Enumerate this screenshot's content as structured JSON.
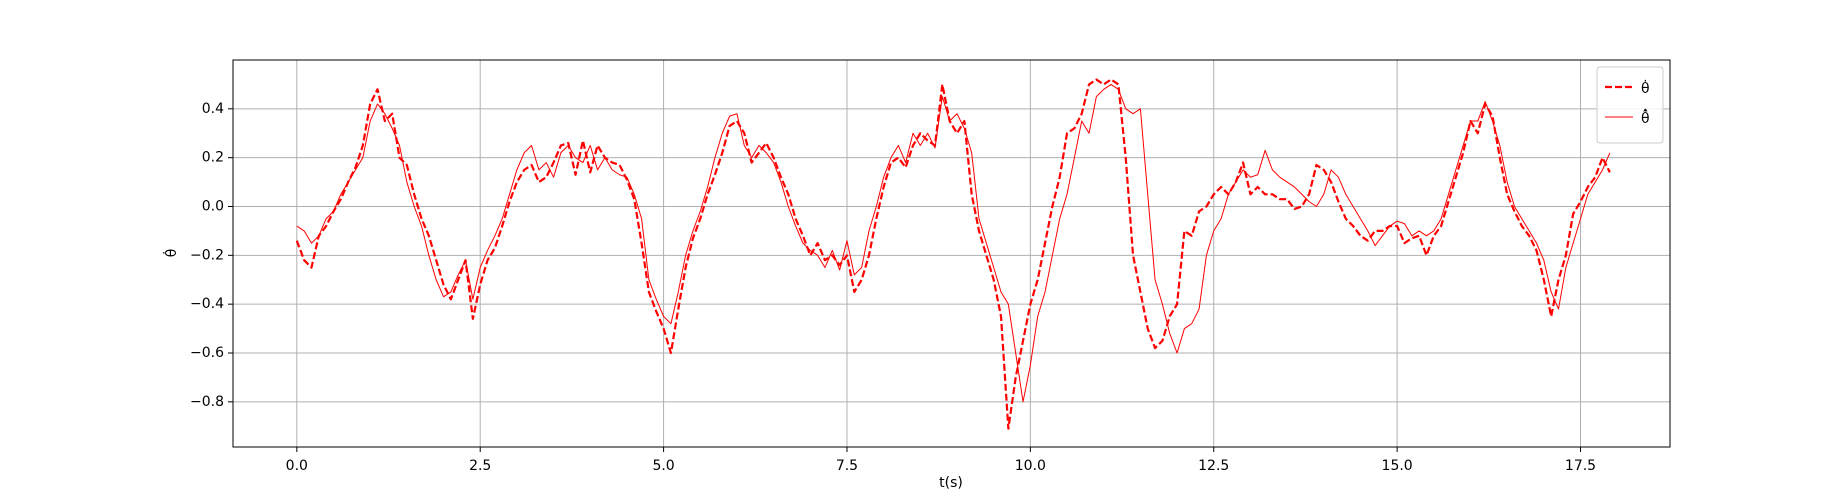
{
  "chart_data": {
    "type": "line",
    "xlabel": "t(s)",
    "ylabel": "θ̇",
    "x": [
      0,
      0.1,
      0.2,
      0.3,
      0.4,
      0.5,
      0.6,
      0.7,
      0.8,
      0.9,
      1,
      1.1,
      1.2,
      1.3,
      1.4,
      1.5,
      1.6,
      1.7,
      1.8,
      1.9,
      2,
      2.1,
      2.2,
      2.3,
      2.4,
      2.5,
      2.6,
      2.7,
      2.8,
      2.9,
      3,
      3.1,
      3.2,
      3.3,
      3.4,
      3.5,
      3.6,
      3.7,
      3.8,
      3.9,
      4,
      4.1,
      4.2,
      4.3,
      4.4,
      4.5,
      4.6,
      4.7,
      4.8,
      4.9,
      5,
      5.1,
      5.2,
      5.3,
      5.4,
      5.5,
      5.6,
      5.7,
      5.8,
      5.9,
      6,
      6.1,
      6.2,
      6.3,
      6.4,
      6.5,
      6.6,
      6.7,
      6.8,
      6.9,
      7,
      7.1,
      7.2,
      7.3,
      7.4,
      7.5,
      7.6,
      7.7,
      7.8,
      7.9,
      8,
      8.1,
      8.2,
      8.3,
      8.4,
      8.5,
      8.6,
      8.7,
      8.8,
      8.9,
      9,
      9.1,
      9.2,
      9.3,
      9.4,
      9.5,
      9.6,
      9.7,
      9.8,
      9.9,
      10,
      10.1,
      10.2,
      10.3,
      10.4,
      10.5,
      10.6,
      10.7,
      10.8,
      10.9,
      11,
      11.1,
      11.2,
      11.3,
      11.4,
      11.5,
      11.6,
      11.7,
      11.8,
      11.9,
      12,
      12.1,
      12.2,
      12.3,
      12.4,
      12.5,
      12.6,
      12.7,
      12.8,
      12.9,
      13,
      13.1,
      13.2,
      13.3,
      13.4,
      13.5,
      13.6,
      13.7,
      13.8,
      13.9,
      14,
      14.1,
      14.2,
      14.3,
      14.4,
      14.5,
      14.6,
      14.7,
      14.8,
      14.9,
      15,
      15.1,
      15.2,
      15.3,
      15.4,
      15.5,
      15.6,
      15.7,
      15.8,
      15.9,
      16,
      16.1,
      16.2,
      16.3,
      16.4,
      16.5,
      16.6,
      16.7,
      16.8,
      16.9,
      17,
      17.1,
      17.2,
      17.3,
      17.4,
      17.5,
      17.6,
      17.7,
      17.8,
      17.9
    ],
    "series": [
      {
        "name": "θ̇",
        "color": "#ff0000",
        "style": "dashed",
        "values": [
          -0.14,
          -0.22,
          -0.25,
          -0.12,
          -0.08,
          -0.02,
          0.03,
          0.1,
          0.16,
          0.25,
          0.42,
          0.48,
          0.35,
          0.38,
          0.2,
          0.17,
          0.05,
          -0.05,
          -0.12,
          -0.22,
          -0.32,
          -0.38,
          -0.3,
          -0.22,
          -0.46,
          -0.32,
          -0.22,
          -0.17,
          -0.08,
          0.02,
          0.1,
          0.15,
          0.17,
          0.1,
          0.12,
          0.18,
          0.25,
          0.26,
          0.13,
          0.27,
          0.14,
          0.25,
          0.2,
          0.18,
          0.17,
          0.11,
          0.03,
          -0.15,
          -0.35,
          -0.43,
          -0.5,
          -0.6,
          -0.42,
          -0.25,
          -0.13,
          -0.05,
          0.05,
          0.13,
          0.22,
          0.33,
          0.35,
          0.3,
          0.18,
          0.22,
          0.26,
          0.2,
          0.12,
          0.05,
          -0.05,
          -0.12,
          -0.2,
          -0.15,
          -0.22,
          -0.2,
          -0.24,
          -0.2,
          -0.35,
          -0.3,
          -0.2,
          -0.05,
          0.08,
          0.18,
          0.2,
          0.16,
          0.25,
          0.3,
          0.27,
          0.25,
          0.5,
          0.35,
          0.3,
          0.35,
          0.05,
          -0.1,
          -0.2,
          -0.3,
          -0.45,
          -0.91,
          -0.7,
          -0.55,
          -0.4,
          -0.3,
          -0.15,
          0.0,
          0.12,
          0.3,
          0.32,
          0.38,
          0.5,
          0.52,
          0.5,
          0.52,
          0.5,
          0.2,
          -0.2,
          -0.35,
          -0.5,
          -0.58,
          -0.55,
          -0.45,
          -0.4,
          -0.1,
          -0.12,
          -0.02,
          0.0,
          0.05,
          0.08,
          0.05,
          0.1,
          0.18,
          0.05,
          0.08,
          0.05,
          0.05,
          0.03,
          0.03,
          -0.01,
          0.0,
          0.05,
          0.17,
          0.15,
          0.1,
          0.02,
          -0.05,
          -0.08,
          -0.12,
          -0.14,
          -0.1,
          -0.1,
          -0.08,
          -0.08,
          -0.15,
          -0.13,
          -0.12,
          -0.2,
          -0.12,
          -0.08,
          0.02,
          0.12,
          0.22,
          0.35,
          0.3,
          0.42,
          0.37,
          0.2,
          0.05,
          -0.02,
          -0.08,
          -0.12,
          -0.18,
          -0.3,
          -0.45,
          -0.3,
          -0.2,
          -0.03,
          0.02,
          0.08,
          0.12,
          0.2,
          0.14
        ]
      },
      {
        "name": "θ̂̇",
        "color": "#ff0000",
        "style": "solid",
        "values": [
          -0.08,
          -0.1,
          -0.15,
          -0.12,
          -0.05,
          -0.02,
          0.05,
          0.1,
          0.15,
          0.2,
          0.35,
          0.42,
          0.38,
          0.32,
          0.25,
          0.1,
          0.0,
          -0.08,
          -0.2,
          -0.3,
          -0.37,
          -0.35,
          -0.28,
          -0.22,
          -0.38,
          -0.25,
          -0.18,
          -0.12,
          -0.05,
          0.05,
          0.15,
          0.22,
          0.25,
          0.15,
          0.18,
          0.12,
          0.22,
          0.25,
          0.2,
          0.18,
          0.25,
          0.15,
          0.2,
          0.15,
          0.13,
          0.12,
          0.05,
          -0.05,
          -0.3,
          -0.38,
          -0.45,
          -0.48,
          -0.35,
          -0.2,
          -0.1,
          -0.02,
          0.08,
          0.2,
          0.3,
          0.37,
          0.38,
          0.25,
          0.2,
          0.25,
          0.22,
          0.18,
          0.1,
          0.0,
          -0.08,
          -0.15,
          -0.18,
          -0.2,
          -0.25,
          -0.18,
          -0.26,
          -0.14,
          -0.28,
          -0.25,
          -0.1,
          0.0,
          0.12,
          0.2,
          0.25,
          0.18,
          0.3,
          0.25,
          0.3,
          0.24,
          0.45,
          0.35,
          0.38,
          0.32,
          0.22,
          -0.05,
          -0.15,
          -0.25,
          -0.35,
          -0.4,
          -0.6,
          -0.8,
          -0.65,
          -0.45,
          -0.35,
          -0.2,
          -0.05,
          0.05,
          0.2,
          0.35,
          0.3,
          0.45,
          0.48,
          0.5,
          0.48,
          0.4,
          0.38,
          0.4,
          0.05,
          -0.3,
          -0.4,
          -0.52,
          -0.6,
          -0.5,
          -0.48,
          -0.42,
          -0.2,
          -0.1,
          -0.05,
          0.05,
          0.1,
          0.15,
          0.12,
          0.13,
          0.23,
          0.15,
          0.12,
          0.1,
          0.08,
          0.05,
          0.02,
          0.0,
          0.05,
          0.15,
          0.12,
          0.05,
          0.0,
          -0.05,
          -0.1,
          -0.16,
          -0.12,
          -0.08,
          -0.06,
          -0.07,
          -0.12,
          -0.1,
          -0.12,
          -0.1,
          -0.05,
          0.05,
          0.15,
          0.25,
          0.35,
          0.35,
          0.43,
          0.35,
          0.25,
          0.1,
          0.0,
          -0.05,
          -0.1,
          -0.15,
          -0.22,
          -0.35,
          -0.42,
          -0.25,
          -0.15,
          -0.05,
          0.05,
          0.1,
          0.15,
          0.22
        ]
      }
    ],
    "xlim": [
      -0.87,
      18.72
    ],
    "ylim": [
      -0.985,
      0.6
    ],
    "xticks": [
      {
        "value": 0,
        "label": "0.0"
      },
      {
        "value": 2.5,
        "label": "2.5"
      },
      {
        "value": 5,
        "label": "5.0"
      },
      {
        "value": 7.5,
        "label": "7.5"
      },
      {
        "value": 10,
        "label": "10.0"
      },
      {
        "value": 12.5,
        "label": "12.5"
      },
      {
        "value": 15,
        "label": "15.0"
      },
      {
        "value": 17.5,
        "label": "17.5"
      }
    ],
    "yticks": [
      {
        "value": -0.8,
        "label": "−0.8"
      },
      {
        "value": -0.6,
        "label": "−0.6"
      },
      {
        "value": -0.4,
        "label": "−0.4"
      },
      {
        "value": -0.2,
        "label": "−0.2"
      },
      {
        "value": 0,
        "label": "0.0"
      },
      {
        "value": 0.2,
        "label": "0.2"
      },
      {
        "value": 0.4,
        "label": "0.4"
      }
    ],
    "grid": true,
    "legend": "upper right"
  }
}
